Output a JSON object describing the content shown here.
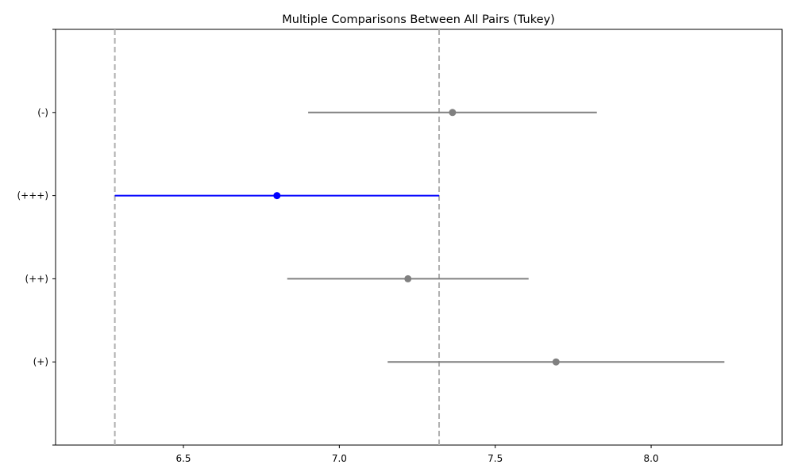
{
  "chart_data": {
    "type": "errorbar",
    "title": "Multiple Comparisons Between All Pairs (Tukey)",
    "xlabel": "",
    "ylabel": "",
    "xlim": [
      6.09,
      8.42
    ],
    "xticks": [
      6.5,
      7.0,
      7.5,
      8.0
    ],
    "xtick_labels": [
      "6.5",
      "7.0",
      "7.5",
      "8.0"
    ],
    "grid": false,
    "groups": [
      {
        "label": "(-)",
        "mean": 7.363,
        "low": 6.9,
        "high": 7.826,
        "highlight": false
      },
      {
        "label": "(+++)",
        "mean": 6.8,
        "low": 6.28,
        "high": 7.32,
        "highlight": true
      },
      {
        "label": "(++)",
        "mean": 7.22,
        "low": 6.833,
        "high": 7.607,
        "highlight": false
      },
      {
        "label": "(+)",
        "mean": 7.695,
        "low": 7.155,
        "high": 8.235,
        "highlight": false
      }
    ],
    "reference_lines": [
      6.28,
      7.32
    ],
    "colors": {
      "highlight": "#0000ff",
      "default": "#808080",
      "reference": "#b0b0b0"
    }
  }
}
